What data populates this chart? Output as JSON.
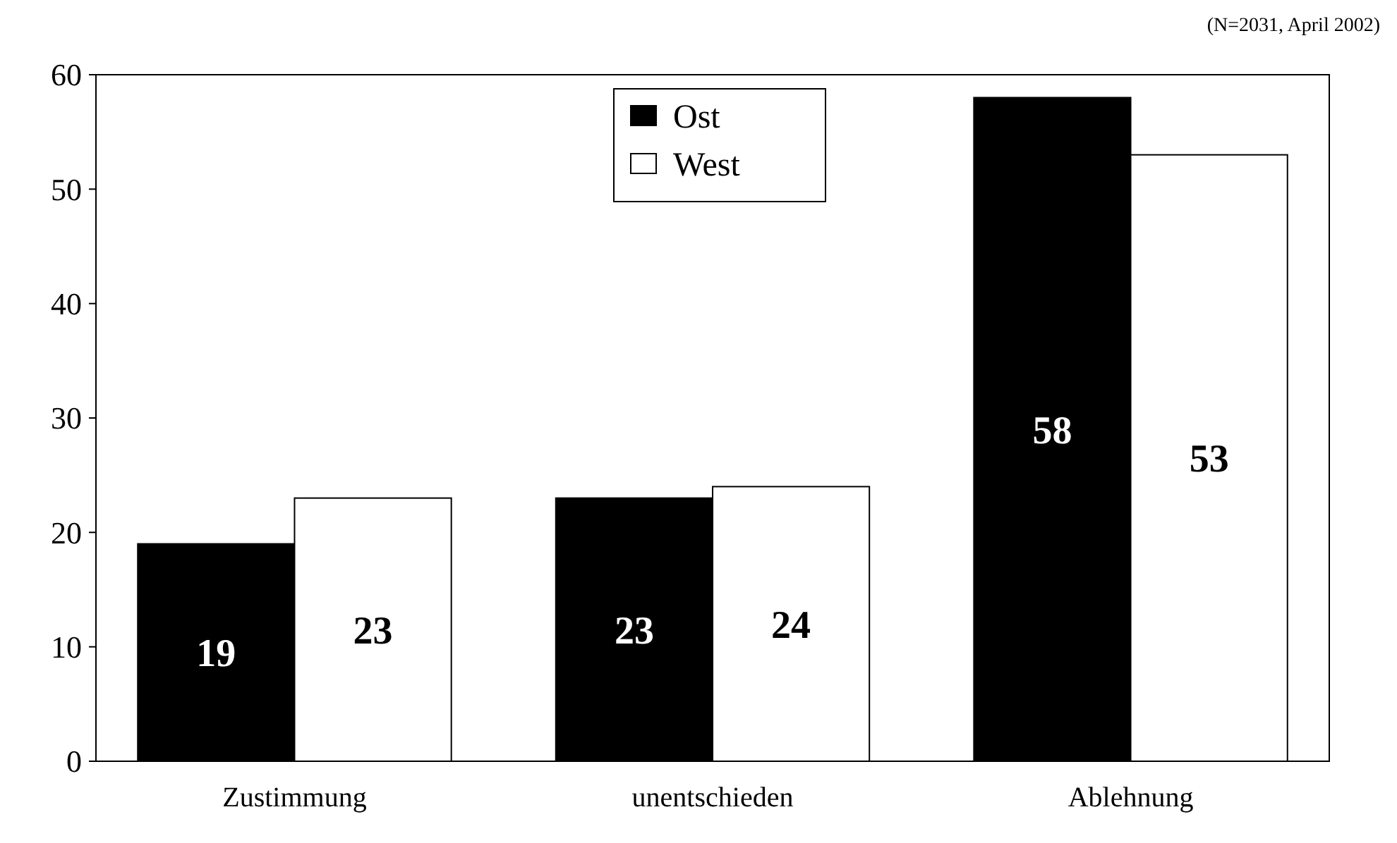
{
  "chart_data": {
    "type": "bar",
    "categories": [
      "Zustimmung",
      "unentschieden",
      "Ablehnung"
    ],
    "series": [
      {
        "name": "Ost",
        "color": "#000000",
        "values": [
          19,
          23,
          58
        ]
      },
      {
        "name": "West",
        "color": "#ffffff",
        "values": [
          23,
          24,
          53
        ]
      }
    ],
    "ylim": [
      0,
      60
    ],
    "yticks": [
      0,
      10,
      20,
      30,
      40,
      50,
      60
    ],
    "grid": false,
    "legend": "top",
    "data_labels": true,
    "annotations": [
      "(N=2031, April 2002)"
    ]
  }
}
